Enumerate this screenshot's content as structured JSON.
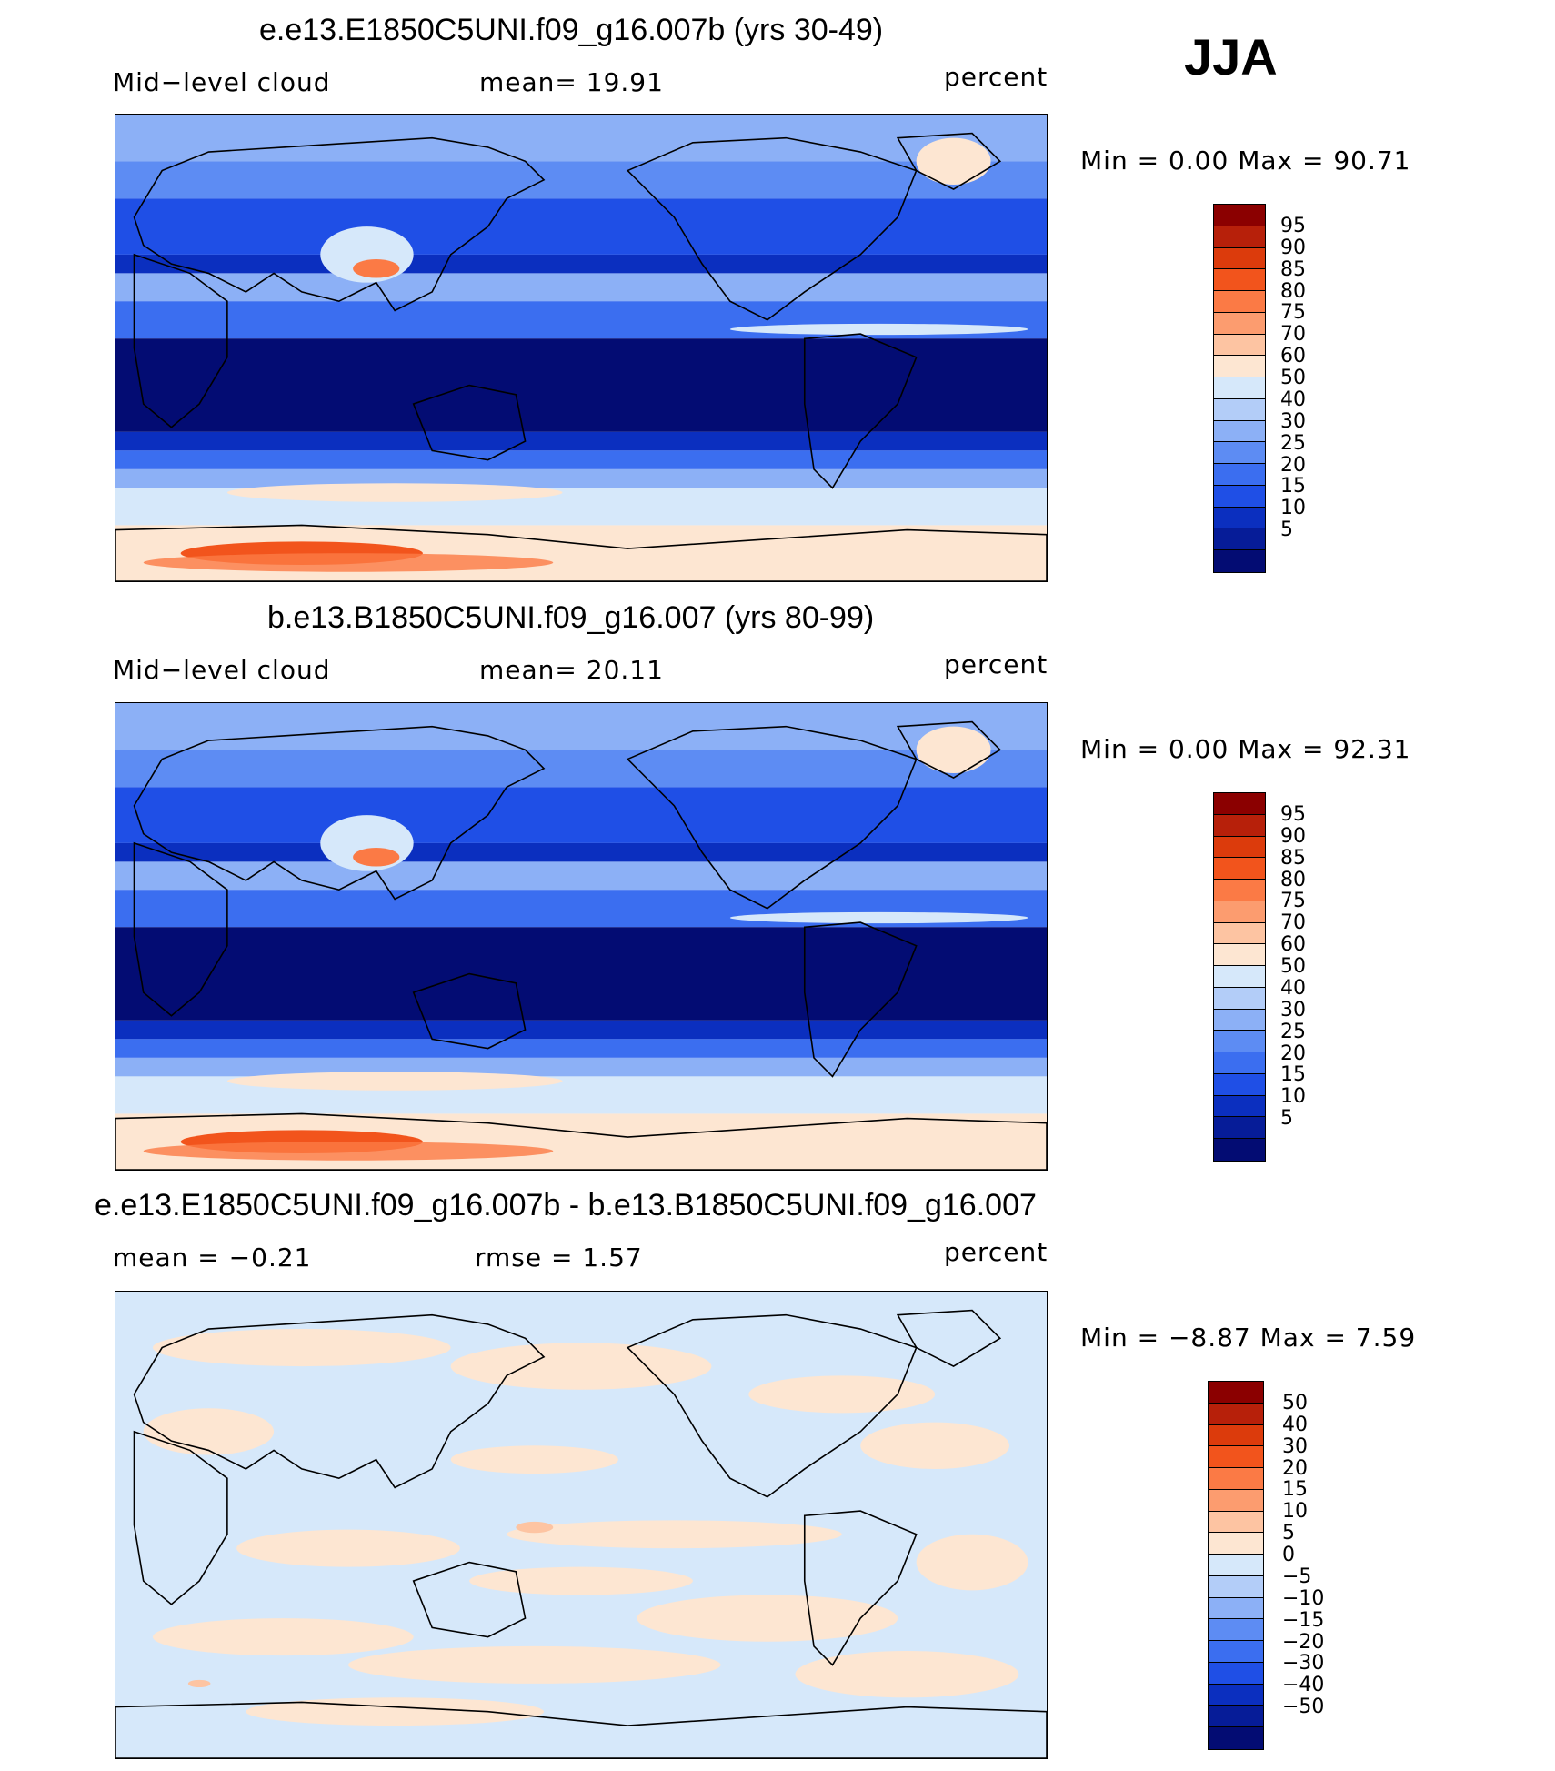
{
  "season": "JJA",
  "panels": [
    {
      "title": "e.e13.E1850C5UNI.f09_g16.007b (yrs 30-49)",
      "left_label": "Mid−level  cloud",
      "center_label": "mean=   19.91",
      "units": "percent",
      "minmax": "Min  =     0.00  Max  =    90.71",
      "colorbar": {
        "labels": [
          "95",
          "90",
          "85",
          "80",
          "75",
          "70",
          "60",
          "50",
          "40",
          "30",
          "25",
          "20",
          "15",
          "10",
          "5"
        ],
        "colors": [
          "#8b0000",
          "#b7200a",
          "#dc3b0c",
          "#f2541c",
          "#fb7a45",
          "#fc9c6f",
          "#fdc4a2",
          "#fde6d2",
          "#d6e8fa",
          "#b3cdf8",
          "#8cb0f6",
          "#5d8cf3",
          "#3b6ef0",
          "#1f4fe6",
          "#0b2fbf",
          "#061c98",
          "#030c73"
        ],
        "min": 0.0,
        "max": 90.71
      },
      "field_style": "abs"
    },
    {
      "title": "b.e13.B1850C5UNI.f09_g16.007 (yrs 80-99)",
      "left_label": "Mid−level  cloud",
      "center_label": "mean=   20.11",
      "units": "percent",
      "minmax": "Min  =     0.00  Max  =    92.31",
      "colorbar": {
        "labels": [
          "95",
          "90",
          "85",
          "80",
          "75",
          "70",
          "60",
          "50",
          "40",
          "30",
          "25",
          "20",
          "15",
          "10",
          "5"
        ],
        "colors": [
          "#8b0000",
          "#b7200a",
          "#dc3b0c",
          "#f2541c",
          "#fb7a45",
          "#fc9c6f",
          "#fdc4a2",
          "#fde6d2",
          "#d6e8fa",
          "#b3cdf8",
          "#8cb0f6",
          "#5d8cf3",
          "#3b6ef0",
          "#1f4fe6",
          "#0b2fbf",
          "#061c98",
          "#030c73"
        ],
        "min": 0.0,
        "max": 92.31
      },
      "field_style": "abs"
    },
    {
      "title": "e.e13.E1850C5UNI.f09_g16.007b - b.e13.B1850C5UNI.f09_g16.007",
      "left_label": "mean  =   −0.21",
      "center_label": "rmse  =     1.57",
      "units": "percent",
      "minmax": "Min  =   −8.87  Max  =      7.59",
      "colorbar": {
        "labels": [
          "50",
          "40",
          "30",
          "20",
          "15",
          "10",
          "5",
          "0",
          "−5",
          "−10",
          "−15",
          "−20",
          "−30",
          "−40",
          "−50"
        ],
        "colors": [
          "#8b0000",
          "#b7200a",
          "#dc3b0c",
          "#f2541c",
          "#fb7a45",
          "#fc9c6f",
          "#fdc4a2",
          "#fde6d2",
          "#d6e8fa",
          "#b3cdf8",
          "#8cb0f6",
          "#5d8cf3",
          "#3b6ef0",
          "#1f4fe6",
          "#0b2fbf",
          "#061c98",
          "#030c73"
        ],
        "min": -8.87,
        "max": 7.59
      },
      "field_style": "diff"
    }
  ],
  "chart_data": [
    {
      "type": "heatmap",
      "title": "e.e13.E1850C5UNI.f09_g16.007b (yrs 30-49)",
      "variable": "Mid−level  cloud",
      "units": "percent",
      "mean": 19.91,
      "min": 0.0,
      "max": 90.71,
      "contour_levels": [
        5,
        10,
        15,
        20,
        25,
        30,
        40,
        50,
        60,
        70,
        75,
        80,
        85,
        90,
        95
      ],
      "projection": "cylindrical equidistant, Pacific-centred",
      "season": "JJA"
    },
    {
      "type": "heatmap",
      "title": "b.e13.B1850C5UNI.f09_g16.007 (yrs 80-99)",
      "variable": "Mid−level  cloud",
      "units": "percent",
      "mean": 20.11,
      "min": 0.0,
      "max": 92.31,
      "contour_levels": [
        5,
        10,
        15,
        20,
        25,
        30,
        40,
        50,
        60,
        70,
        75,
        80,
        85,
        90,
        95
      ],
      "projection": "cylindrical equidistant, Pacific-centred",
      "season": "JJA"
    },
    {
      "type": "heatmap",
      "title": "e.e13.E1850C5UNI.f09_g16.007b - b.e13.B1850C5UNI.f09_g16.007",
      "units": "percent",
      "mean": -0.21,
      "rmse": 1.57,
      "min": -8.87,
      "max": 7.59,
      "contour_levels": [
        -50,
        -40,
        -30,
        -20,
        -15,
        -10,
        -5,
        0,
        5,
        10,
        15,
        20,
        30,
        40,
        50
      ],
      "projection": "cylindrical equidistant, Pacific-centred",
      "season": "JJA"
    }
  ]
}
